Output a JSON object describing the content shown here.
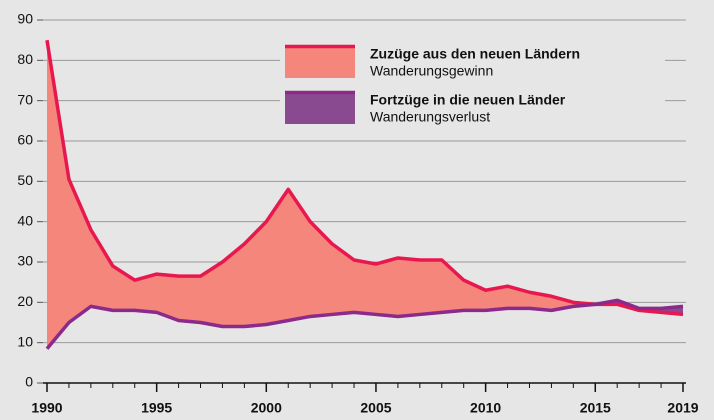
{
  "chart_data": {
    "type": "area_line",
    "x": [
      1990,
      1991,
      1992,
      1993,
      1994,
      1995,
      1996,
      1997,
      1998,
      1999,
      2000,
      2001,
      2002,
      2003,
      2004,
      2005,
      2006,
      2007,
      2008,
      2009,
      2010,
      2011,
      2012,
      2013,
      2014,
      2015,
      2016,
      2017,
      2018,
      2019
    ],
    "series": [
      {
        "name": "Zuzüge aus den neuen Ländern",
        "fill_label": "Wanderungsgewinn",
        "color": "#e8184f",
        "fill": "#f4867c",
        "values": [
          85,
          50.5,
          38,
          29,
          25.5,
          27,
          26.5,
          26.5,
          30,
          34.5,
          40,
          48,
          40,
          34.5,
          30.5,
          29.5,
          31,
          30.5,
          30.5,
          25.5,
          23,
          24,
          22.5,
          21.5,
          20,
          19.5,
          19.5,
          18,
          17.5,
          17
        ]
      },
      {
        "name": "Fortzüge in die neuen Länder",
        "fill_label": "Wanderungsverlust",
        "color": "#8b2a8b",
        "fill": "#8a4a90",
        "values": [
          8.5,
          15,
          19,
          18,
          18,
          17.5,
          15.5,
          15,
          14,
          14,
          14.5,
          15.5,
          16.5,
          17,
          17.5,
          17,
          16.5,
          17,
          17.5,
          18,
          18,
          18.5,
          18.5,
          18,
          19,
          19.5,
          20.5,
          18.5,
          18.5,
          19
        ]
      }
    ],
    "xlim": [
      1990,
      2019
    ],
    "xticks": [
      1990,
      1995,
      2000,
      2005,
      2010,
      2015,
      2019
    ],
    "ylim": [
      0,
      90
    ],
    "yticks": [
      0,
      10,
      20,
      30,
      40,
      50,
      60,
      70,
      80,
      90
    ],
    "grid": true
  }
}
